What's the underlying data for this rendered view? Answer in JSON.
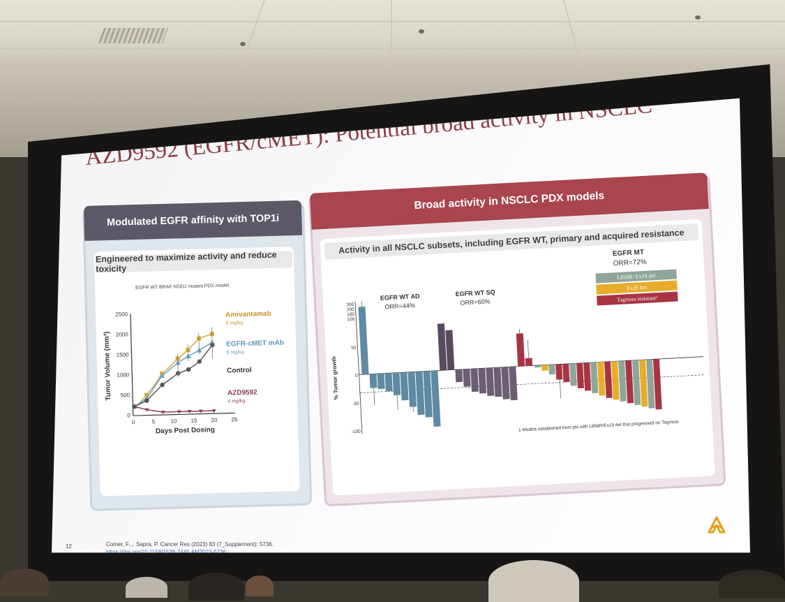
{
  "slide": {
    "title": "AZD9592 (EGFR/cMET): Potential broad activity in NSCLC",
    "page_number": "12",
    "citation": "Comer, F.... Sapra, P. Cancer Res (2023) 83 (7_Supplement): 5736.",
    "doi": "https://doi.org/10.1158/1538-7445.AM2023-5736"
  },
  "left_panel": {
    "header": "Modulated EGFR affinity with TOP1i",
    "subheader": "Engineered to maximize activity and reduce toxicity",
    "model_caption": "EGFR WT BRAF N581I mutant PDX model",
    "chart": {
      "ylabel": "Tumor Volume (mm³)",
      "xlabel": "Days Post Dosing",
      "yticks": [
        "2500",
        "2000",
        "1500",
        "1000",
        "500",
        "0"
      ],
      "xticks": [
        "0",
        "5",
        "10",
        "15",
        "20",
        "25"
      ],
      "series": [
        {
          "name": "Amivantamab",
          "dose": "8 mg/kg",
          "color": "#d9a53a"
        },
        {
          "name": "EGFR-cMET mAb",
          "dose": "8 mg/kg",
          "color": "#6aa7c3"
        },
        {
          "name": "Control",
          "dose": "",
          "color": "#555555"
        },
        {
          "name": "AZD9592",
          "dose": "4 mg/kg",
          "color": "#8a3d55"
        }
      ]
    }
  },
  "right_panel": {
    "header": "Broad activity in NSCLC PDX models",
    "subheader": "Activity in all NSCLC subsets, including EGFR WT, primary and acquired resistance",
    "ylabel": "% Tumor growth",
    "yticks": [
      "300",
      "200",
      "100",
      "100",
      "50",
      "0",
      "-50",
      "-100"
    ],
    "groups": [
      {
        "label": "EGFR WT AD",
        "orr": "ORR=44%"
      },
      {
        "label": "EGFR WT SQ",
        "orr": "ORR=60%"
      },
      {
        "label": "EGFR MT",
        "orr": "ORR=72%"
      }
    ],
    "legend": [
      {
        "label": "L858R/ Ex19 del",
        "color": "#8fa59a"
      },
      {
        "label": "Ex20 Ins",
        "color": "#e6ac2a"
      },
      {
        "label": "Tagrisso resistant¹",
        "color": "#a73443"
      }
    ],
    "footnote": "1 Models established from pts with L858R/Ex19 del that progressed on Tagrisso"
  },
  "colors": {
    "title": "#8a3d43",
    "left_header": "#5c5867",
    "right_header": "#a8454d",
    "ad_bar": "#5f8aa2",
    "sq_bar": "#5a4a60"
  }
}
